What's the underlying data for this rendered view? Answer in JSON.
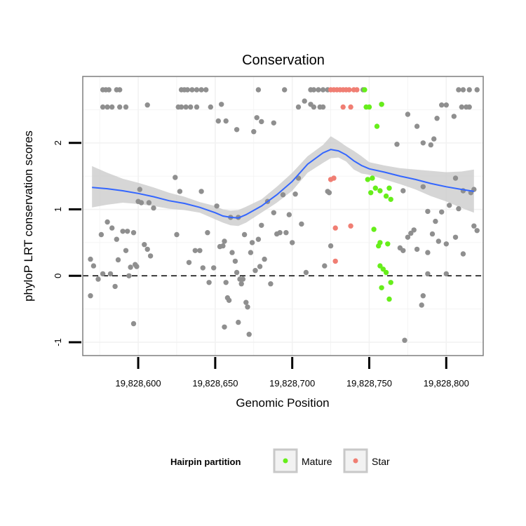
{
  "chart_data": {
    "type": "scatter",
    "title": "Conservation",
    "xlabel": "Genomic Position",
    "ylabel": "phyloP LRT conservation scores",
    "xlim": [
      19828564,
      19828824
    ],
    "ylim": [
      -1.2,
      3.0
    ],
    "x_ticks": [
      19828600,
      19828650,
      19828700,
      19828750,
      19828800
    ],
    "x_tick_labels": [
      "19,828,600",
      "19,828,650",
      "19,828,700",
      "19,828,750",
      "19,828,800"
    ],
    "y_ticks": [
      -1,
      0,
      1,
      2
    ],
    "y_tick_labels": [
      "-1",
      "0",
      "1",
      "2"
    ],
    "reference_line": {
      "y": 0,
      "style": "dashed"
    },
    "grid": true,
    "colors": {
      "other": "#8f8f8f",
      "Mature": "#66ee1a",
      "Star": "#f07e73",
      "smooth": "#3366ff",
      "ribbon": "#c8c8c8",
      "panel_border": "#7f7f7f",
      "grid": "#f2f2f2"
    },
    "legend": {
      "title": "Hairpin partition",
      "position": "bottom",
      "entries": [
        {
          "label": "Mature",
          "color": "#66ee1a"
        },
        {
          "label": "Star",
          "color": "#f07e73"
        }
      ]
    },
    "series": [
      {
        "name": "Other",
        "points": [
          [
            19828577,
            2.8
          ],
          [
            19828579,
            2.8
          ],
          [
            19828581,
            2.8
          ],
          [
            19828586,
            2.8
          ],
          [
            19828588,
            2.8
          ],
          [
            19828577,
            2.54
          ],
          [
            19828580,
            2.54
          ],
          [
            19828583,
            2.54
          ],
          [
            19828588,
            2.54
          ],
          [
            19828592,
            2.54
          ],
          [
            19828628,
            2.8
          ],
          [
            19828630,
            2.8
          ],
          [
            19828632,
            2.8
          ],
          [
            19828635,
            2.8
          ],
          [
            19828638,
            2.8
          ],
          [
            19828641,
            2.8
          ],
          [
            19828644,
            2.8
          ],
          [
            19828626,
            2.54
          ],
          [
            19828628,
            2.54
          ],
          [
            19828631,
            2.54
          ],
          [
            19828634,
            2.54
          ],
          [
            19828638,
            2.54
          ],
          [
            19828647,
            2.54
          ],
          [
            19828654,
            2.58
          ],
          [
            19828652,
            2.33
          ],
          [
            19828657,
            2.33
          ],
          [
            19828664,
            2.2
          ],
          [
            19828678,
            2.8
          ],
          [
            19828695,
            2.8
          ],
          [
            19828712,
            2.8
          ],
          [
            19828714,
            2.8
          ],
          [
            19828717,
            2.8
          ],
          [
            19828720,
            2.8
          ],
          [
            19828723,
            2.8
          ],
          [
            19828746,
            2.8
          ],
          [
            19828675,
            2.17
          ],
          [
            19828677,
            2.38
          ],
          [
            19828680,
            2.32
          ],
          [
            19828688,
            2.3
          ],
          [
            19828704,
            2.54
          ],
          [
            19828708,
            2.63
          ],
          [
            19828712,
            2.58
          ],
          [
            19828714,
            2.54
          ],
          [
            19828718,
            2.54
          ],
          [
            19828720,
            2.54
          ],
          [
            19828606,
            2.57
          ],
          [
            19828758,
            2.58
          ],
          [
            19828775,
            2.43
          ],
          [
            19828781,
            2.25
          ],
          [
            19828785,
            2.0
          ],
          [
            19828790,
            1.97
          ],
          [
            19828792,
            2.06
          ],
          [
            19828794,
            2.37
          ],
          [
            19828797,
            2.57
          ],
          [
            19828800,
            2.57
          ],
          [
            19828805,
            2.4
          ],
          [
            19828810,
            2.54
          ],
          [
            19828813,
            2.54
          ],
          [
            19828815,
            2.54
          ],
          [
            19828808,
            2.8
          ],
          [
            19828811,
            2.8
          ],
          [
            19828815,
            2.8
          ],
          [
            19828820,
            2.8
          ],
          [
            19828768,
            1.98
          ],
          [
            19828772,
            1.28
          ],
          [
            19828785,
            1.34
          ],
          [
            19828788,
            0.97
          ],
          [
            19828793,
            0.82
          ],
          [
            19828797,
            0.96
          ],
          [
            19828802,
            1.06
          ],
          [
            19828806,
            1.47
          ],
          [
            19828811,
            1.28
          ],
          [
            19828816,
            1.25
          ],
          [
            19828818,
            1.3
          ],
          [
            19828806,
            0.58
          ],
          [
            19828808,
            1.01
          ],
          [
            19828818,
            0.75
          ],
          [
            19828820,
            0.68
          ],
          [
            19828811,
            0.33
          ],
          [
            19828791,
            0.63
          ],
          [
            19828795,
            0.52
          ],
          [
            19828800,
            0.48
          ],
          [
            19828788,
            0.35
          ],
          [
            19828775,
            0.58
          ],
          [
            19828777,
            0.64
          ],
          [
            19828779,
            0.69
          ],
          [
            19828772,
            0.38
          ],
          [
            19828770,
            0.42
          ],
          [
            19828781,
            0.4
          ],
          [
            19828788,
            0.03
          ],
          [
            19828785,
            -0.3
          ],
          [
            19828784,
            -0.44
          ],
          [
            19828800,
            0.03
          ],
          [
            19828773,
            -0.97
          ],
          [
            19828569,
            0.25
          ],
          [
            19828571,
            0.15
          ],
          [
            19828569,
            -0.3
          ],
          [
            19828574,
            -0.05
          ],
          [
            19828577,
            0.03
          ],
          [
            19828576,
            0.62
          ],
          [
            19828580,
            0.81
          ],
          [
            19828582,
            0.03
          ],
          [
            19828583,
            0.72
          ],
          [
            19828586,
            0.55
          ],
          [
            19828585,
            -0.16
          ],
          [
            19828587,
            0.24
          ],
          [
            19828590,
            0.67
          ],
          [
            19828592,
            0.38
          ],
          [
            19828593,
            0.67
          ],
          [
            19828595,
            0.13
          ],
          [
            19828594,
            0.0
          ],
          [
            19828597,
            0.65
          ],
          [
            19828598,
            0.17
          ],
          [
            19828599,
            0.14
          ],
          [
            19828597,
            -0.72
          ],
          [
            19828600,
            1.12
          ],
          [
            19828602,
            1.1
          ],
          [
            19828601,
            1.3
          ],
          [
            19828604,
            0.47
          ],
          [
            19828606,
            0.4
          ],
          [
            19828607,
            1.1
          ],
          [
            19828608,
            0.3
          ],
          [
            19828610,
            1.02
          ],
          [
            19828624,
            1.48
          ],
          [
            19828627,
            1.27
          ],
          [
            19828625,
            0.62
          ],
          [
            19828633,
            0.2
          ],
          [
            19828637,
            0.38
          ],
          [
            19828640,
            0.38
          ],
          [
            19828641,
            1.27
          ],
          [
            19828642,
            0.12
          ],
          [
            19828645,
            0.65
          ],
          [
            19828646,
            -0.1
          ],
          [
            19828649,
            0.12
          ],
          [
            19828651,
            1.05
          ],
          [
            19828653,
            0.44
          ],
          [
            19828655,
            0.45
          ],
          [
            19828656,
            0.52
          ],
          [
            19828657,
            -0.1
          ],
          [
            19828658,
            -0.33
          ],
          [
            19828659,
            -0.37
          ],
          [
            19828660,
            0.88
          ],
          [
            19828661,
            0.35
          ],
          [
            19828656,
            -0.77
          ],
          [
            19828663,
            0.22
          ],
          [
            19828664,
            0.05
          ],
          [
            19828665,
            0.88
          ],
          [
            19828666,
            -0.05
          ],
          [
            19828667,
            -0.12
          ],
          [
            19828668,
            -0.05
          ],
          [
            19828669,
            0.62
          ],
          [
            19828670,
            -0.4
          ],
          [
            19828671,
            -0.47
          ],
          [
            19828665,
            -0.7
          ],
          [
            19828672,
            -0.88
          ],
          [
            19828673,
            0.35
          ],
          [
            19828674,
            0.5
          ],
          [
            19828676,
            0.08
          ],
          [
            19828678,
            0.55
          ],
          [
            19828679,
            0.14
          ],
          [
            19828680,
            0.76
          ],
          [
            19828682,
            0.25
          ],
          [
            19828684,
            1.12
          ],
          [
            19828686,
            -0.12
          ],
          [
            19828688,
            0.95
          ],
          [
            19828690,
            0.63
          ],
          [
            19828692,
            0.65
          ],
          [
            19828694,
            1.22
          ],
          [
            19828696,
            0.65
          ],
          [
            19828698,
            0.92
          ],
          [
            19828700,
            0.5
          ],
          [
            19828702,
            1.23
          ],
          [
            19828704,
            1.47
          ],
          [
            19828706,
            0.78
          ],
          [
            19828709,
            0.05
          ],
          [
            19828721,
            0.15
          ],
          [
            19828723,
            1.27
          ],
          [
            19828724,
            1.25
          ],
          [
            19828725,
            0.45
          ]
        ]
      },
      {
        "name": "Mature",
        "points": [
          [
            19828747,
            2.8
          ],
          [
            19828748,
            2.54
          ],
          [
            19828750,
            2.54
          ],
          [
            19828755,
            2.25
          ],
          [
            19828758,
            2.58
          ],
          [
            19828749,
            1.45
          ],
          [
            19828752,
            1.47
          ],
          [
            19828751,
            1.25
          ],
          [
            19828754,
            1.32
          ],
          [
            19828757,
            1.28
          ],
          [
            19828761,
            1.2
          ],
          [
            19828763,
            1.32
          ],
          [
            19828764,
            1.15
          ],
          [
            19828753,
            0.7
          ],
          [
            19828756,
            0.45
          ],
          [
            19828757,
            0.5
          ],
          [
            19828762,
            0.48
          ],
          [
            19828757,
            0.15
          ],
          [
            19828759,
            0.1
          ],
          [
            19828761,
            0.05
          ],
          [
            19828758,
            -0.18
          ],
          [
            19828764,
            -0.1
          ],
          [
            19828763,
            -0.35
          ]
        ]
      },
      {
        "name": "Star",
        "points": [
          [
            19828725,
            2.8
          ],
          [
            19828727,
            2.8
          ],
          [
            19828729,
            2.8
          ],
          [
            19828731,
            2.8
          ],
          [
            19828733,
            2.8
          ],
          [
            19828735,
            2.8
          ],
          [
            19828737,
            2.8
          ],
          [
            19828740,
            2.8
          ],
          [
            19828742,
            2.8
          ],
          [
            19828733,
            2.54
          ],
          [
            19828738,
            2.54
          ],
          [
            19828725,
            1.45
          ],
          [
            19828727,
            1.47
          ],
          [
            19828728,
            0.72
          ],
          [
            19828738,
            0.75
          ],
          [
            19828728,
            0.22
          ]
        ]
      }
    ],
    "smooth": {
      "method": "loess",
      "x": [
        19828570,
        19828580,
        19828590,
        19828600,
        19828610,
        19828620,
        19828630,
        19828640,
        19828650,
        19828655,
        19828660,
        19828665,
        19828670,
        19828680,
        19828690,
        19828700,
        19828710,
        19828720,
        19828725,
        19828730,
        19828735,
        19828740,
        19828745,
        19828750,
        19828760,
        19828770,
        19828780,
        19828790,
        19828800,
        19828810,
        19828818
      ],
      "y": [
        1.33,
        1.31,
        1.28,
        1.24,
        1.19,
        1.13,
        1.09,
        1.03,
        0.95,
        0.9,
        0.88,
        0.87,
        0.92,
        1.05,
        1.22,
        1.42,
        1.68,
        1.85,
        1.9,
        1.88,
        1.82,
        1.73,
        1.66,
        1.61,
        1.56,
        1.5,
        1.45,
        1.39,
        1.34,
        1.3,
        1.27
      ],
      "lower": [
        1.03,
        1.07,
        1.1,
        1.08,
        1.05,
        1.01,
        0.99,
        0.95,
        0.85,
        0.8,
        0.76,
        0.75,
        0.8,
        0.95,
        1.1,
        1.28,
        1.55,
        1.7,
        1.77,
        1.78,
        1.72,
        1.6,
        1.54,
        1.52,
        1.45,
        1.38,
        1.3,
        1.2,
        1.12,
        1.02,
        0.95
      ],
      "upper": [
        1.65,
        1.55,
        1.46,
        1.4,
        1.33,
        1.25,
        1.19,
        1.11,
        1.05,
        1.0,
        0.98,
        0.99,
        1.04,
        1.15,
        1.34,
        1.55,
        1.8,
        1.97,
        2.1,
        2.03,
        1.95,
        1.88,
        1.8,
        1.71,
        1.66,
        1.62,
        1.6,
        1.58,
        1.56,
        1.57,
        1.6
      ]
    }
  }
}
